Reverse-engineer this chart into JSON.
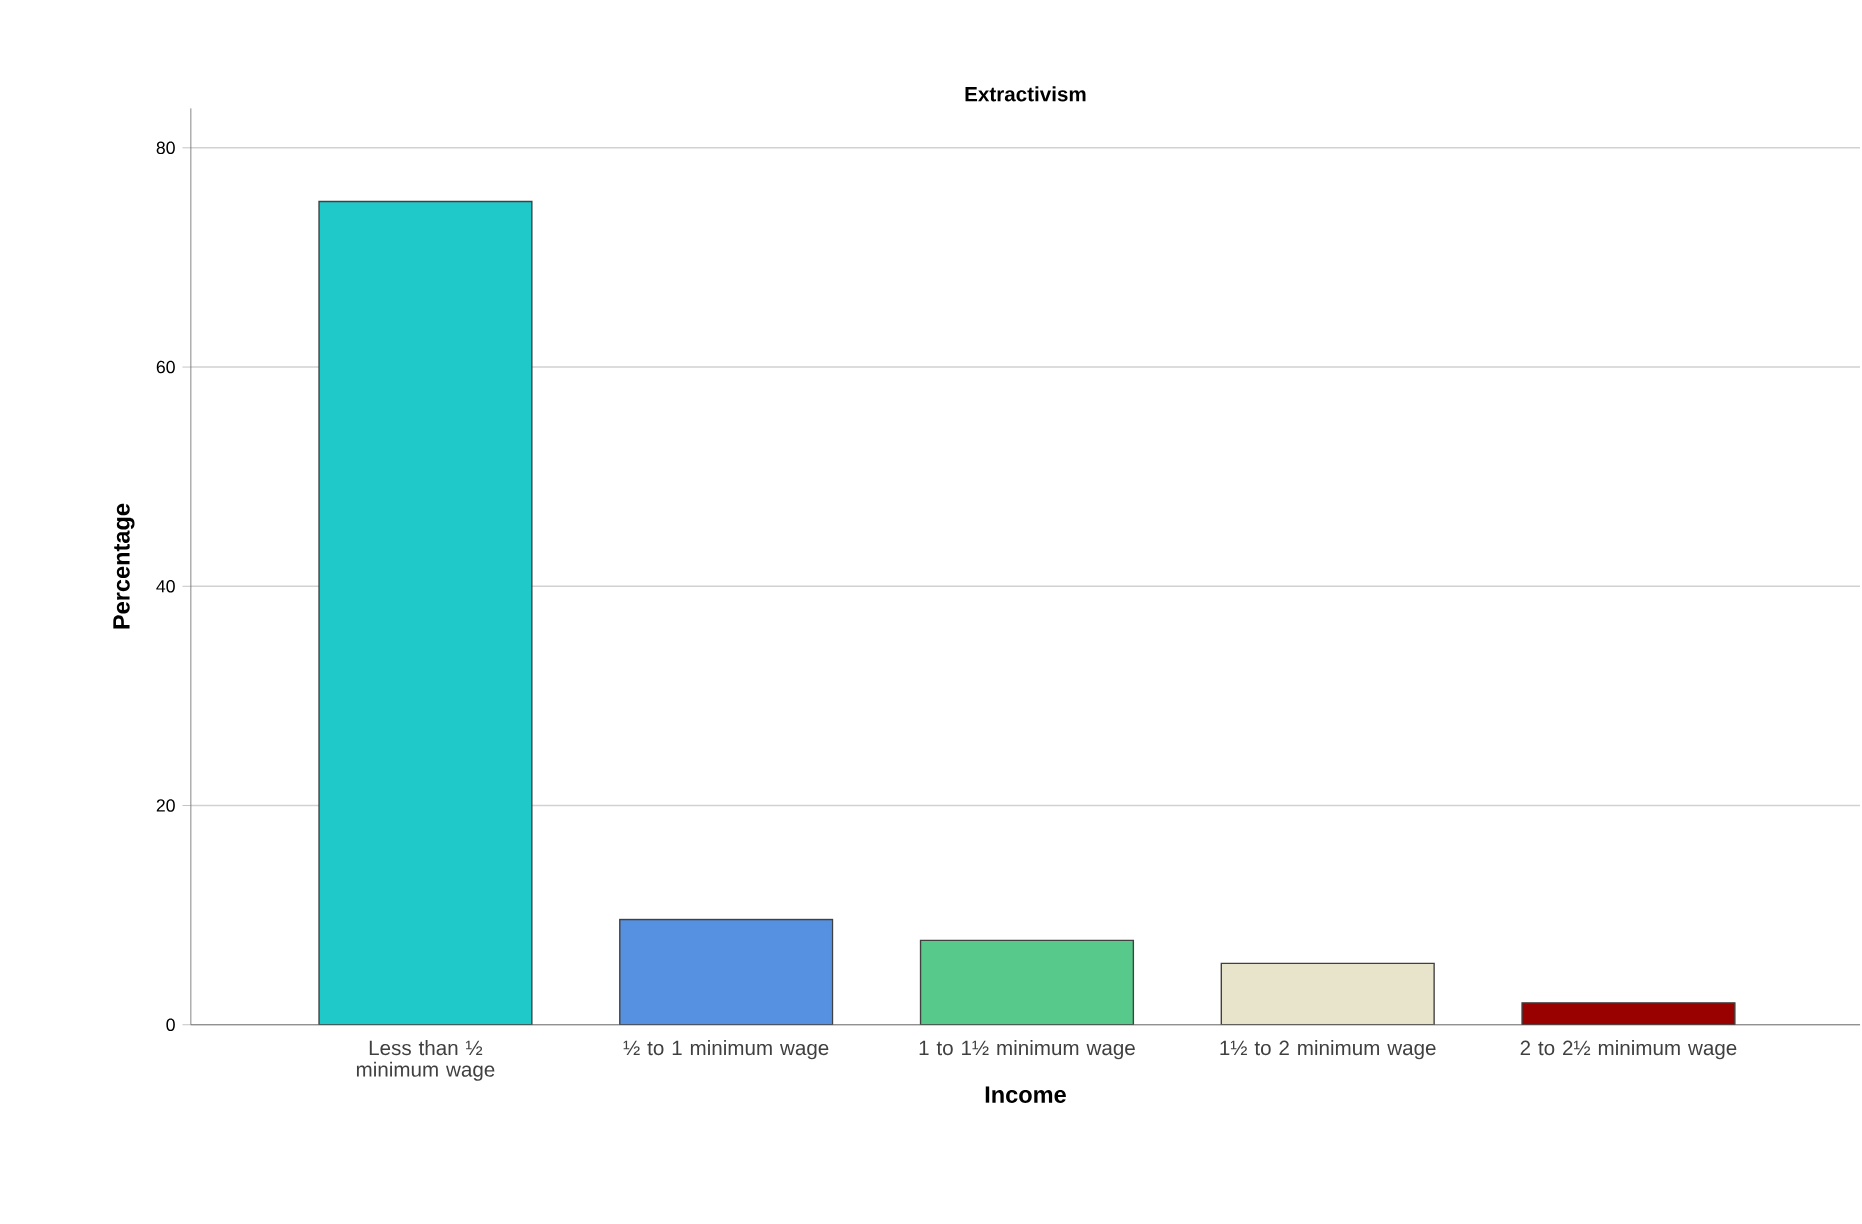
{
  "chart_data": {
    "type": "bar",
    "title": "Extractivism",
    "xlabel": "Income",
    "ylabel": "Percentage",
    "categories": [
      "Less than ½ minimum wage",
      "½ to 1 minimum wage",
      "1 to 1½ minimum wage",
      "1½ to 2 minimum wage",
      "2 to 2½ minimum wage"
    ],
    "values": [
      75.1,
      9.6,
      7.7,
      5.6,
      2.0
    ],
    "colors": [
      "#1fc9c9",
      "#5591e0",
      "#57c98a",
      "#e8e4cc",
      "#990000"
    ],
    "ylim": [
      0,
      83.6
    ],
    "yticks": [
      0,
      20,
      40,
      60,
      80
    ],
    "grid": "y"
  }
}
